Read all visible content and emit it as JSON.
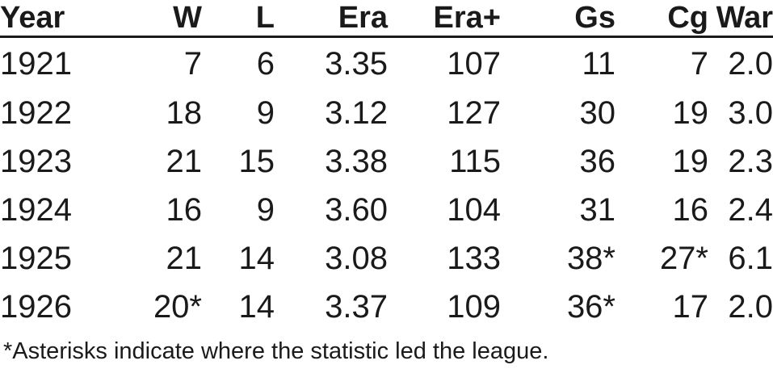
{
  "table": {
    "headers": [
      "Year",
      "W",
      "L",
      "Era",
      "Era+",
      "Gs",
      "Cg",
      "War"
    ],
    "rows": [
      [
        "1921",
        "7",
        "6",
        "3.35",
        "107",
        "11",
        "7",
        "2.0"
      ],
      [
        "1922",
        "18",
        "9",
        "3.12",
        "127",
        "30",
        "19",
        "3.0"
      ],
      [
        "1923",
        "21",
        "15",
        "3.38",
        "115",
        "36",
        "19",
        "2.3"
      ],
      [
        "1924",
        "16",
        "9",
        "3.60",
        "104",
        "31",
        "16",
        "2.4"
      ],
      [
        "1925",
        "21",
        "14",
        "3.08",
        "133",
        "38*",
        "27*",
        "6.1"
      ],
      [
        "1926",
        "20*",
        "14",
        "3.37",
        "109",
        "36*",
        "17",
        "2.0"
      ]
    ]
  },
  "footnote": "*Asterisks indicate where the statistic led the league."
}
